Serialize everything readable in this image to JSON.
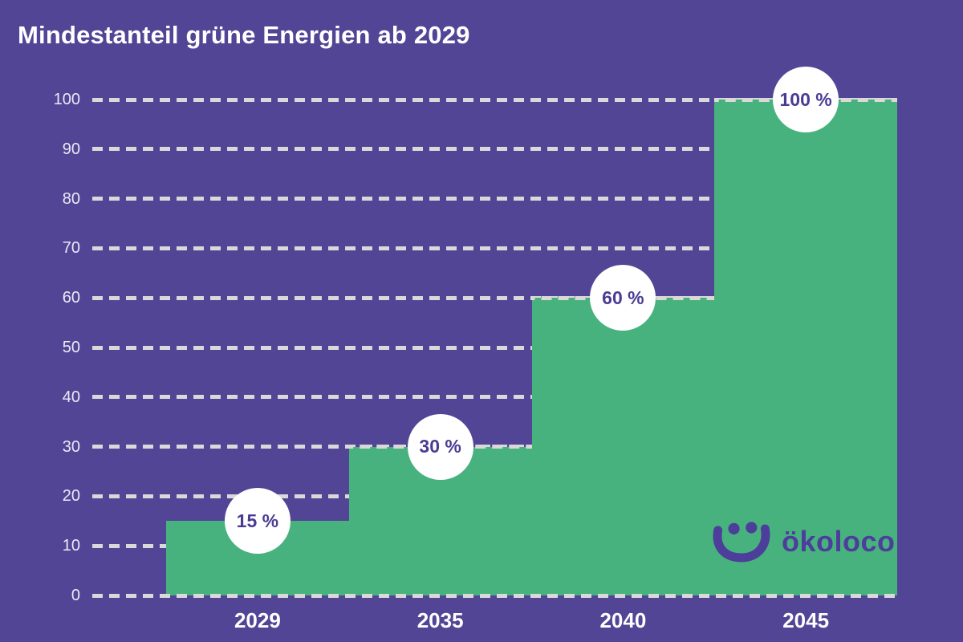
{
  "title": "Mindestanteil grüne Energien ab 2029",
  "colors": {
    "background": "#534596",
    "bar": "#48b27e",
    "gridline": "#d9d9d9",
    "title_text": "#ffffff",
    "axis_y_text": "#ece9f6",
    "axis_x_text": "#ffffff",
    "badge_bg": "#ffffff",
    "badge_text": "#4a3c94",
    "logo": "#4c3e9a"
  },
  "chart_data": {
    "type": "area",
    "style": "step-area",
    "title": "Mindestanteil grüne Energien ab 2029",
    "categories": [
      "2029",
      "2035",
      "2040",
      "2045"
    ],
    "values": [
      15,
      30,
      60,
      100
    ],
    "value_labels": [
      "15 %",
      "30 %",
      "60 %",
      "100 %"
    ],
    "xlabel": "",
    "ylabel": "",
    "ylim": [
      0,
      100
    ],
    "yticks": [
      0,
      10,
      20,
      30,
      40,
      50,
      60,
      70,
      80,
      90,
      100
    ],
    "ytick_labels": [
      "0",
      "10",
      "20",
      "30",
      "40",
      "50",
      "60",
      "70",
      "80",
      "90",
      "100"
    ],
    "grid": "horizontal-dashed",
    "legend": "none"
  },
  "logo": {
    "text": "ökoloco",
    "icon": "smiley-icon"
  }
}
